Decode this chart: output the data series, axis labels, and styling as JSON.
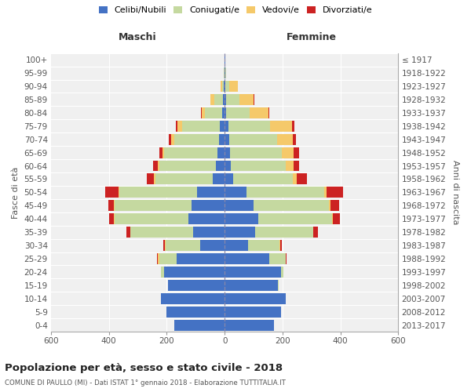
{
  "age_groups": [
    "0-4",
    "5-9",
    "10-14",
    "15-19",
    "20-24",
    "25-29",
    "30-34",
    "35-39",
    "40-44",
    "45-49",
    "50-54",
    "55-59",
    "60-64",
    "65-69",
    "70-74",
    "75-79",
    "80-84",
    "85-89",
    "90-94",
    "95-99",
    "100+"
  ],
  "birth_years": [
    "2013-2017",
    "2008-2012",
    "2003-2007",
    "1998-2002",
    "1993-1997",
    "1988-1992",
    "1983-1987",
    "1978-1982",
    "1973-1977",
    "1968-1972",
    "1963-1967",
    "1958-1962",
    "1953-1957",
    "1948-1952",
    "1943-1947",
    "1938-1942",
    "1933-1937",
    "1928-1932",
    "1923-1927",
    "1918-1922",
    "≤ 1917"
  ],
  "male_celibi": [
    175,
    200,
    220,
    195,
    210,
    165,
    85,
    110,
    125,
    115,
    95,
    40,
    30,
    25,
    20,
    18,
    8,
    5,
    2,
    1,
    1
  ],
  "male_coniugati": [
    0,
    0,
    0,
    2,
    10,
    60,
    120,
    215,
    255,
    265,
    270,
    200,
    195,
    185,
    155,
    130,
    60,
    30,
    8,
    2,
    0
  ],
  "male_vedovi": [
    0,
    0,
    0,
    0,
    0,
    5,
    2,
    2,
    2,
    2,
    3,
    5,
    5,
    5,
    10,
    15,
    12,
    15,
    5,
    0,
    0
  ],
  "male_divorziati": [
    0,
    0,
    0,
    0,
    0,
    3,
    5,
    12,
    18,
    20,
    45,
    25,
    18,
    10,
    8,
    5,
    3,
    0,
    0,
    0,
    0
  ],
  "female_celibi": [
    170,
    195,
    210,
    185,
    195,
    155,
    80,
    105,
    115,
    100,
    75,
    30,
    22,
    18,
    15,
    12,
    5,
    5,
    3,
    2,
    1
  ],
  "female_coniugati": [
    0,
    0,
    0,
    1,
    8,
    55,
    110,
    200,
    255,
    260,
    270,
    205,
    190,
    180,
    165,
    145,
    80,
    45,
    12,
    2,
    0
  ],
  "female_vedovi": [
    0,
    0,
    0,
    0,
    0,
    2,
    2,
    2,
    3,
    5,
    8,
    15,
    25,
    40,
    55,
    75,
    65,
    50,
    30,
    2,
    0
  ],
  "female_divorziati": [
    0,
    0,
    0,
    0,
    0,
    3,
    5,
    15,
    25,
    30,
    55,
    35,
    20,
    18,
    12,
    10,
    5,
    2,
    0,
    0,
    0
  ],
  "color_celibi": "#4472c4",
  "color_coniugati": "#c5d9a0",
  "color_vedovi": "#f5c96a",
  "color_divorziati": "#cc2222",
  "title": "Popolazione per età, sesso e stato civile - 2018",
  "subtitle": "COMUNE DI PAULLO (MI) - Dati ISTAT 1° gennaio 2018 - Elaborazione TUTTITALIA.IT",
  "xlabel_left": "Maschi",
  "xlabel_right": "Femmine",
  "ylabel": "Fasce di età",
  "ylabel_right": "Anni di nascita",
  "xlim": 600,
  "background_color": "#f0f0f0"
}
